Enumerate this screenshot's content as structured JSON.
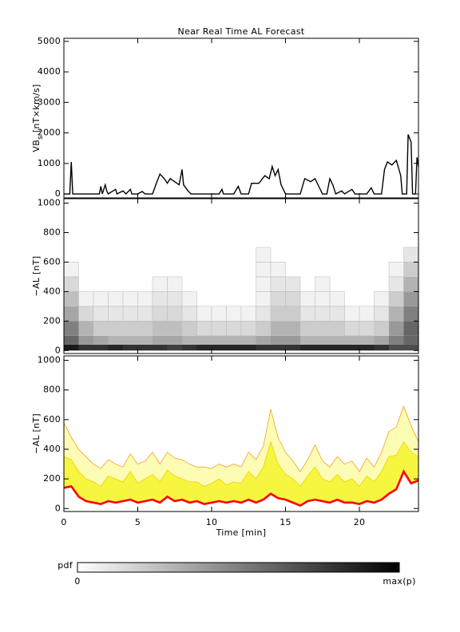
{
  "chart_data": [
    {
      "type": "line",
      "title": "Near Real Time AL Forecast",
      "ylabel": {
        "text": "VB",
        "subscript": "s",
        "suffix": " [nT×km/s]"
      },
      "color": "#000000",
      "xlim": [
        0,
        24
      ],
      "xticks": [
        0,
        5,
        10,
        15,
        20
      ],
      "xtick_labels": false,
      "ylim": [
        -130,
        5100
      ],
      "yticks": [
        0,
        1000,
        2000,
        3000,
        4000,
        5000
      ],
      "x": [
        0,
        0.4,
        0.5,
        0.6,
        2.4,
        2.5,
        2.6,
        2.8,
        2.9,
        3.0,
        3.5,
        3.6,
        4.0,
        4.2,
        4.5,
        4.6,
        5.0,
        5.3,
        5.5,
        6.0,
        6.3,
        6.5,
        6.8,
        7.0,
        7.2,
        7.5,
        7.8,
        8.0,
        8.1,
        8.4,
        8.6,
        10.5,
        10.7,
        10.8,
        11.5,
        11.8,
        12.0,
        12.5,
        12.7,
        13.2,
        13.6,
        13.9,
        14.1,
        14.3,
        14.5,
        14.7,
        15.0,
        16.0,
        16.3,
        16.7,
        17.0,
        17.3,
        17.5,
        17.8,
        18.0,
        18.2,
        18.4,
        18.8,
        19.0,
        19.5,
        19.7,
        20.5,
        20.8,
        21.0,
        21.5,
        21.7,
        21.9,
        22.2,
        22.5,
        22.8,
        22.9,
        23.2,
        23.3,
        23.5,
        23.6,
        23.8,
        23.9,
        24
      ],
      "values": [
        0,
        0,
        1050,
        0,
        0,
        250,
        0,
        300,
        100,
        0,
        150,
        0,
        100,
        0,
        150,
        0,
        0,
        80,
        0,
        0,
        400,
        650,
        500,
        350,
        500,
        400,
        300,
        800,
        300,
        100,
        0,
        0,
        150,
        0,
        0,
        250,
        0,
        0,
        350,
        350,
        600,
        500,
        900,
        600,
        800,
        300,
        0,
        0,
        500,
        400,
        500,
        200,
        0,
        0,
        500,
        300,
        0,
        100,
        0,
        150,
        0,
        0,
        200,
        0,
        0,
        800,
        1050,
        950,
        1100,
        600,
        0,
        0,
        1950,
        1700,
        0,
        0,
        1200,
        900
      ]
    },
    {
      "type": "heatmap",
      "ylabel": "−AL [nT]",
      "xlim": [
        0,
        24
      ],
      "xticks": [
        0,
        5,
        10,
        15,
        20
      ],
      "xtick_labels": false,
      "ylim": [
        -20,
        1030
      ],
      "yticks": [
        0,
        200,
        400,
        600,
        800,
        1000
      ],
      "xbins": [
        0,
        1,
        2,
        3,
        4,
        5,
        6,
        7,
        8,
        9,
        10,
        11,
        12,
        13,
        14,
        15,
        16,
        17,
        18,
        19,
        20,
        21,
        22,
        23,
        24
      ],
      "ybins": [
        0,
        40,
        100,
        200,
        300,
        400,
        500,
        600,
        700
      ],
      "z": [
        [
          0.9,
          0.8,
          0.8,
          0.85,
          0.8,
          0.8,
          0.8,
          0.75,
          0.8,
          0.85,
          0.85,
          0.85,
          0.85,
          0.8,
          0.8,
          0.8,
          0.85,
          0.85,
          0.85,
          0.85,
          0.85,
          0.8,
          0.7,
          0.7
        ],
        [
          0.6,
          0.4,
          0.35,
          0.3,
          0.3,
          0.3,
          0.35,
          0.35,
          0.3,
          0.3,
          0.3,
          0.3,
          0.3,
          0.35,
          0.4,
          0.4,
          0.3,
          0.3,
          0.3,
          0.3,
          0.3,
          0.35,
          0.5,
          0.6
        ],
        [
          0.5,
          0.3,
          0.2,
          0.2,
          0.2,
          0.2,
          0.25,
          0.25,
          0.2,
          0.15,
          0.15,
          0.15,
          0.15,
          0.2,
          0.3,
          0.3,
          0.2,
          0.2,
          0.2,
          0.15,
          0.15,
          0.2,
          0.4,
          0.6
        ],
        [
          0.35,
          0.15,
          0.1,
          0.1,
          0.1,
          0.1,
          0.15,
          0.15,
          0.1,
          0.05,
          0.05,
          0.05,
          0.05,
          0.1,
          0.2,
          0.2,
          0.1,
          0.1,
          0.1,
          0.05,
          0.05,
          0.1,
          0.3,
          0.5
        ],
        [
          0.25,
          0.05,
          0.05,
          0.05,
          0.05,
          0.05,
          0.1,
          0.1,
          0.05,
          0,
          0,
          0,
          0,
          0.05,
          0.15,
          0.15,
          0.05,
          0.05,
          0.05,
          0,
          0,
          0.05,
          0.2,
          0.4
        ],
        [
          0.15,
          0,
          0,
          0,
          0,
          0,
          0.05,
          0.05,
          0,
          0,
          0,
          0,
          0,
          0.05,
          0.1,
          0.1,
          0,
          0.05,
          0,
          0,
          0,
          0,
          0.1,
          0.3
        ],
        [
          0.05,
          0,
          0,
          0,
          0,
          0,
          0,
          0,
          0,
          0,
          0,
          0,
          0,
          0.05,
          0.05,
          0,
          0,
          0,
          0,
          0,
          0,
          0,
          0.05,
          0.2
        ],
        [
          0,
          0,
          0,
          0,
          0,
          0,
          0,
          0,
          0,
          0,
          0,
          0,
          0,
          0.05,
          0,
          0,
          0,
          0,
          0,
          0,
          0,
          0,
          0,
          0.1
        ]
      ]
    },
    {
      "type": "band",
      "ylabel": "−AL [nT]",
      "xlabel": "Time [min]",
      "xlim": [
        0,
        24
      ],
      "xticks": [
        0,
        5,
        10,
        15,
        20
      ],
      "xtick_labels": true,
      "ylim": [
        -20,
        1030
      ],
      "yticks": [
        0,
        200,
        400,
        600,
        800,
        1000
      ],
      "x": [
        0,
        0.5,
        1,
        1.5,
        2,
        2.5,
        3,
        3.5,
        4,
        4.5,
        5,
        5.5,
        6,
        6.5,
        7,
        7.5,
        8,
        8.5,
        9,
        9.5,
        10,
        10.5,
        11,
        11.5,
        12,
        12.5,
        13,
        13.5,
        14,
        14.5,
        15,
        15.5,
        16,
        16.5,
        17,
        17.5,
        18,
        18.5,
        19,
        19.5,
        20,
        20.5,
        21,
        21.5,
        22,
        22.5,
        23,
        23.5,
        24
      ],
      "series": [
        {
          "color": "#ff0000",
          "fill": "#ffffff",
          "values": [
            140,
            150,
            80,
            50,
            40,
            30,
            50,
            40,
            50,
            60,
            40,
            50,
            60,
            40,
            80,
            50,
            60,
            40,
            50,
            30,
            40,
            50,
            40,
            50,
            40,
            60,
            40,
            60,
            100,
            70,
            60,
            40,
            20,
            50,
            60,
            50,
            40,
            60,
            40,
            40,
            30,
            50,
            40,
            60,
            100,
            130,
            250,
            170,
            190
          ]
        },
        {
          "color": "#f0d000",
          "fill": "#f6f640",
          "values": [
            350,
            330,
            250,
            200,
            180,
            150,
            220,
            200,
            180,
            250,
            170,
            200,
            230,
            180,
            260,
            220,
            200,
            180,
            180,
            150,
            170,
            200,
            160,
            180,
            170,
            250,
            200,
            280,
            450,
            300,
            230,
            200,
            150,
            220,
            280,
            200,
            180,
            230,
            180,
            200,
            150,
            220,
            180,
            250,
            350,
            360,
            450,
            380,
            350
          ]
        },
        {
          "color": "#f5a020",
          "fill": "#fcfcb4",
          "values": [
            580,
            480,
            400,
            350,
            300,
            270,
            330,
            300,
            280,
            370,
            300,
            320,
            380,
            300,
            380,
            340,
            330,
            300,
            280,
            280,
            270,
            300,
            280,
            300,
            280,
            380,
            330,
            420,
            670,
            480,
            380,
            320,
            250,
            330,
            430,
            320,
            280,
            350,
            300,
            320,
            250,
            340,
            280,
            380,
            520,
            550,
            690,
            560,
            450
          ]
        }
      ]
    },
    {
      "type": "colorbar",
      "label": "pdf",
      "lim": [
        0,
        1
      ],
      "ticks": [
        0,
        {
          "value": 1,
          "label": "max(p)"
        }
      ]
    }
  ]
}
